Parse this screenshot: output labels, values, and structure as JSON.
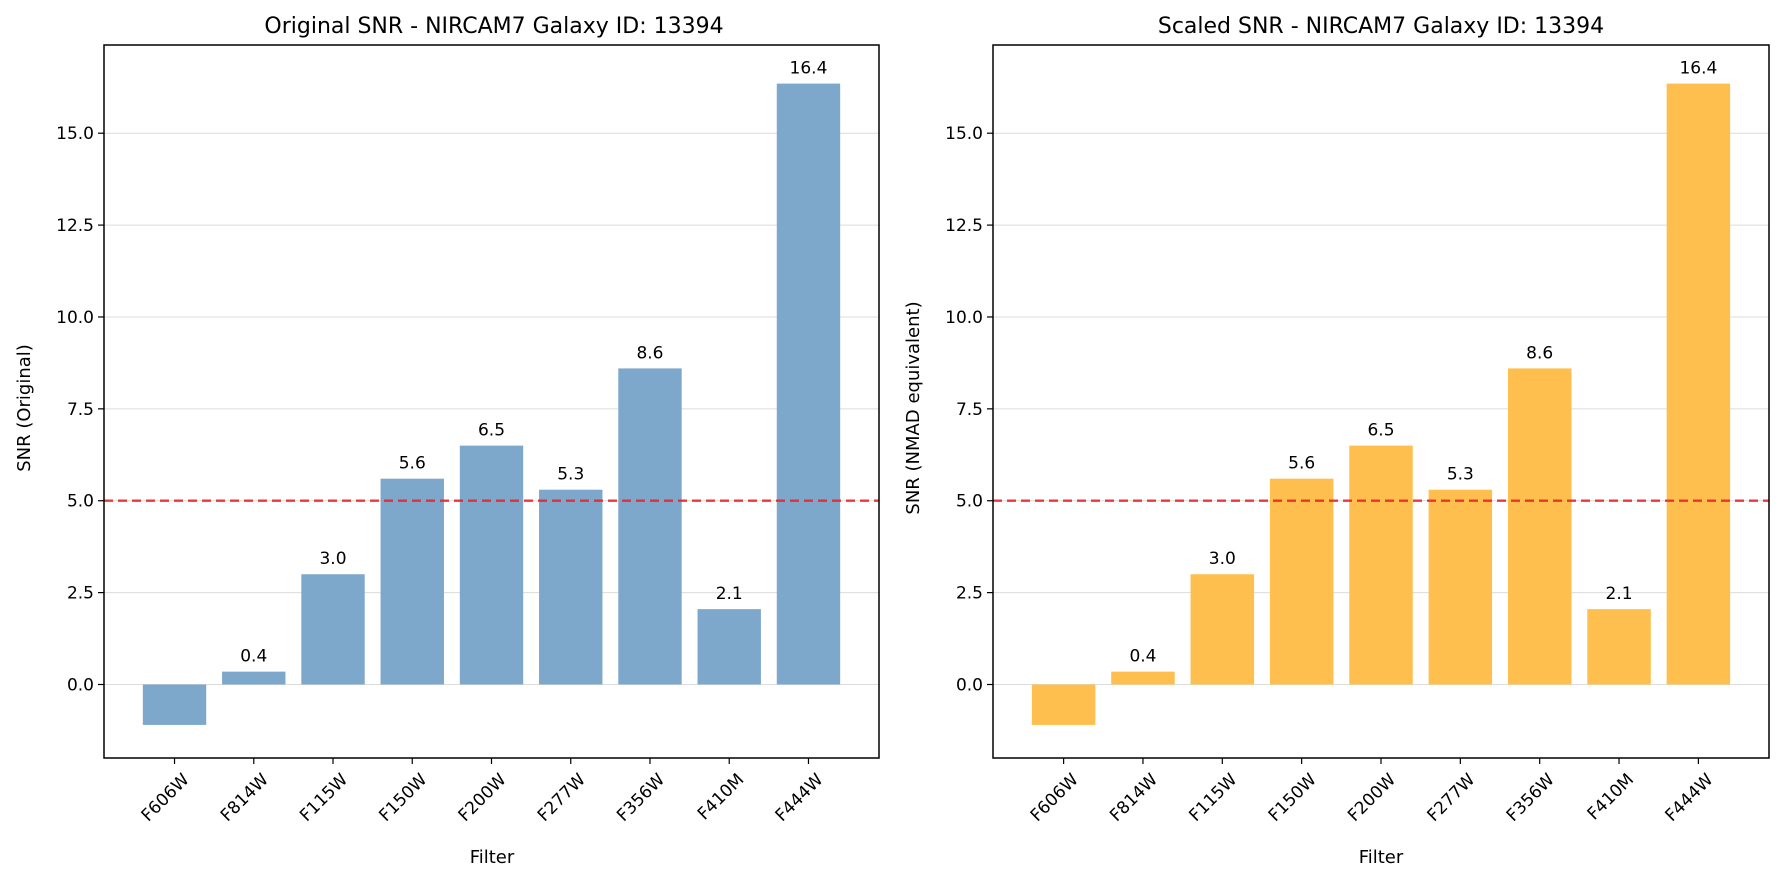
{
  "chart_data": [
    {
      "type": "bar",
      "title": "Original SNR - NIRCAM7 Galaxy ID: 13394",
      "xlabel": "Filter",
      "ylabel": "SNR (Original)",
      "categories": [
        "F606W",
        "F814W",
        "F115W",
        "F150W",
        "F200W",
        "F277W",
        "F356W",
        "F410M",
        "F444W"
      ],
      "values": [
        -1.1,
        0.35,
        3.0,
        5.6,
        6.5,
        5.3,
        8.6,
        2.05,
        16.35
      ],
      "value_labels": [
        "",
        "0.4",
        "3.0",
        "5.6",
        "6.5",
        "5.3",
        "8.6",
        "2.1",
        "16.4"
      ],
      "ylim": [
        -2.0,
        17.4
      ],
      "yticks": [
        0.0,
        2.5,
        5.0,
        7.5,
        10.0,
        12.5,
        15.0
      ],
      "ytick_labels": [
        "0.0",
        "2.5",
        "5.0",
        "7.5",
        "10.0",
        "12.5",
        "15.0"
      ],
      "reference_line": {
        "y": 5.0,
        "style": "dashed",
        "color": "#e8262a"
      },
      "bar_color": "#7ea7cc",
      "grid": "y"
    },
    {
      "type": "bar",
      "title": "Scaled SNR - NIRCAM7 Galaxy ID: 13394",
      "xlabel": "Filter",
      "ylabel": "SNR (NMAD equivalent)",
      "categories": [
        "F606W",
        "F814W",
        "F115W",
        "F150W",
        "F200W",
        "F277W",
        "F356W",
        "F410M",
        "F444W"
      ],
      "values": [
        -1.1,
        0.35,
        3.0,
        5.6,
        6.5,
        5.3,
        8.6,
        2.05,
        16.35
      ],
      "value_labels": [
        "",
        "0.4",
        "3.0",
        "5.6",
        "6.5",
        "5.3",
        "8.6",
        "2.1",
        "16.4"
      ],
      "ylim": [
        -2.0,
        17.4
      ],
      "yticks": [
        0.0,
        2.5,
        5.0,
        7.5,
        10.0,
        12.5,
        15.0
      ],
      "ytick_labels": [
        "0.0",
        "2.5",
        "5.0",
        "7.5",
        "10.0",
        "12.5",
        "15.0"
      ],
      "reference_line": {
        "y": 5.0,
        "style": "dashed",
        "color": "#e8262a"
      },
      "bar_color": "#febf4e",
      "grid": "y"
    }
  ]
}
